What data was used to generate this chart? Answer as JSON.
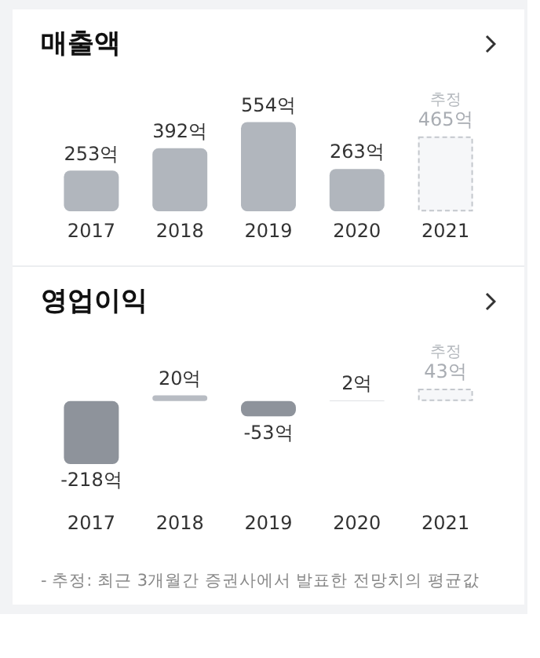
{
  "chart_data": [
    {
      "type": "bar",
      "title": "매출액",
      "categories": [
        "2017",
        "2018",
        "2019",
        "2020",
        "2021"
      ],
      "stacked": true,
      "tick_labels": "x",
      "grid": false,
      "legend": false,
      "series": [
        {
          "colors": [
            "#b1b6bd",
            "#b1b6bd",
            "#b1b6bd",
            "#b1b6bd",
            "#b1b6bd"
          ],
          "values": [
            253,
            392,
            554,
            263,
            null
          ],
          "value_labels": [
            "253억",
            "392억",
            "554억",
            "263억",
            null
          ]
        },
        {
          "color": "#f6f7f9",
          "line_style": "dashed",
          "values": [
            null,
            null,
            null,
            null,
            465
          ],
          "value_labels": [
            null,
            null,
            null,
            null,
            "465억"
          ]
        }
      ],
      "annotations": [
        {
          "text": "추정",
          "x": "2021",
          "y": 465
        }
      ]
    },
    {
      "type": "bar",
      "title": "영업이익",
      "categories": [
        "2017",
        "2018",
        "2019",
        "2020",
        "2021"
      ],
      "stacked": true,
      "tick_labels": "x",
      "grid": false,
      "legend": false,
      "series": [
        {
          "colors": [
            "#8e939b",
            "#b8bcc3",
            "#8e939b",
            "#d5d8dc",
            "#b1b6bd"
          ],
          "values": [
            -218,
            20,
            -53,
            2,
            null
          ],
          "value_labels": [
            "-218억",
            "20억",
            "-53억",
            "2억",
            null
          ]
        },
        {
          "color": "#f6f7f9",
          "line_style": "dashed",
          "values": [
            null,
            null,
            null,
            null,
            43
          ],
          "value_labels": [
            null,
            null,
            null,
            null,
            "43억"
          ]
        }
      ],
      "annotations": [
        {
          "text": "추정",
          "x": "2021",
          "y": 43
        },
        "- 추정: 최근 3개월간 증권사에서 발표한 전망치의 평균값"
      ]
    }
  ]
}
